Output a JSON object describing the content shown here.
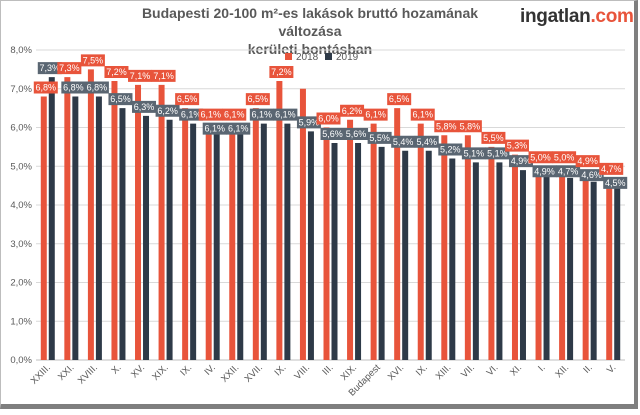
{
  "title_line1": "Budapesti 20-100 m²-es lakások bruttó hozamának változása",
  "title_line2": "kerületi bontásban",
  "logo": {
    "part1": "ingatlan",
    "dot": ".",
    "part2": "com"
  },
  "colors": {
    "s2018": "#e8543b",
    "s2019": "#2e3a48",
    "label2019_bg": "#5a6672",
    "grid": "#d9d9d9"
  },
  "chart_data": {
    "type": "bar",
    "title": "Budapesti 20-100 m²-es lakások bruttó hozamának változása kerületi bontásban",
    "categories": [
      "XXIII.",
      "XXI.",
      "XVIII.",
      "X.",
      "XV.",
      "XIX.",
      "IX.",
      "IV.",
      "XXII.",
      "XVII.",
      "IX.",
      "VIII.",
      "III.",
      "XIX.",
      "Budapest",
      "XVI.",
      "IX.",
      "XIII.",
      "VII.",
      "VI.",
      "XI.",
      "I.",
      "XII.",
      "II.",
      "V."
    ],
    "series": [
      {
        "name": "2018",
        "values": [
          6.8,
          7.3,
          7.5,
          7.2,
          7.1,
          7.1,
          6.5,
          6.1,
          6.1,
          6.5,
          7.2,
          7.0,
          6.0,
          6.2,
          6.1,
          6.5,
          6.1,
          5.8,
          5.8,
          5.5,
          5.3,
          5.0,
          5.0,
          4.9,
          4.7
        ],
        "labels": [
          "6,8%",
          "7,3%",
          "7,5%",
          "7,2%",
          "7,1%",
          "7,1%",
          "6,5%",
          "6,1%",
          "6,1%",
          "6,5%",
          "7,2%",
          "",
          "6,0%",
          "6,2%",
          "6,1%",
          "6,5%",
          "6,1%",
          "5,8%",
          "5,8%",
          "5,5%",
          "5,3%",
          "5,0%",
          "5,0%",
          "4,9%",
          "4,7%"
        ]
      },
      {
        "name": "2019",
        "values": [
          7.3,
          6.8,
          6.8,
          6.5,
          6.3,
          6.2,
          6.1,
          6.1,
          6.1,
          6.1,
          6.1,
          5.9,
          5.6,
          5.6,
          5.5,
          5.4,
          5.4,
          5.2,
          5.1,
          5.1,
          4.9,
          4.9,
          4.7,
          4.6,
          4.5
        ],
        "labels": [
          "7,3%",
          "6,8%",
          "6,8%",
          "6,5%",
          "6,3%",
          "6,2%",
          "6,1%",
          "6,1%",
          "6,1%",
          "6,1%",
          "6,1%",
          "5,9%",
          "5,6%",
          "5,6%",
          "5,5%",
          "5,4%",
          "5,4%",
          "5,2%",
          "5,1%",
          "5,1%",
          "4,9%",
          "4,9%",
          "4,7%",
          "4,6%",
          "4,5%"
        ]
      }
    ],
    "yticks": [
      "0,0%",
      "1,0%",
      "2,0%",
      "3,0%",
      "4,0%",
      "5,0%",
      "6,0%",
      "7,0%",
      "8,0%"
    ],
    "ylim": [
      0,
      8
    ],
    "grid": true,
    "legend": "top-right"
  }
}
